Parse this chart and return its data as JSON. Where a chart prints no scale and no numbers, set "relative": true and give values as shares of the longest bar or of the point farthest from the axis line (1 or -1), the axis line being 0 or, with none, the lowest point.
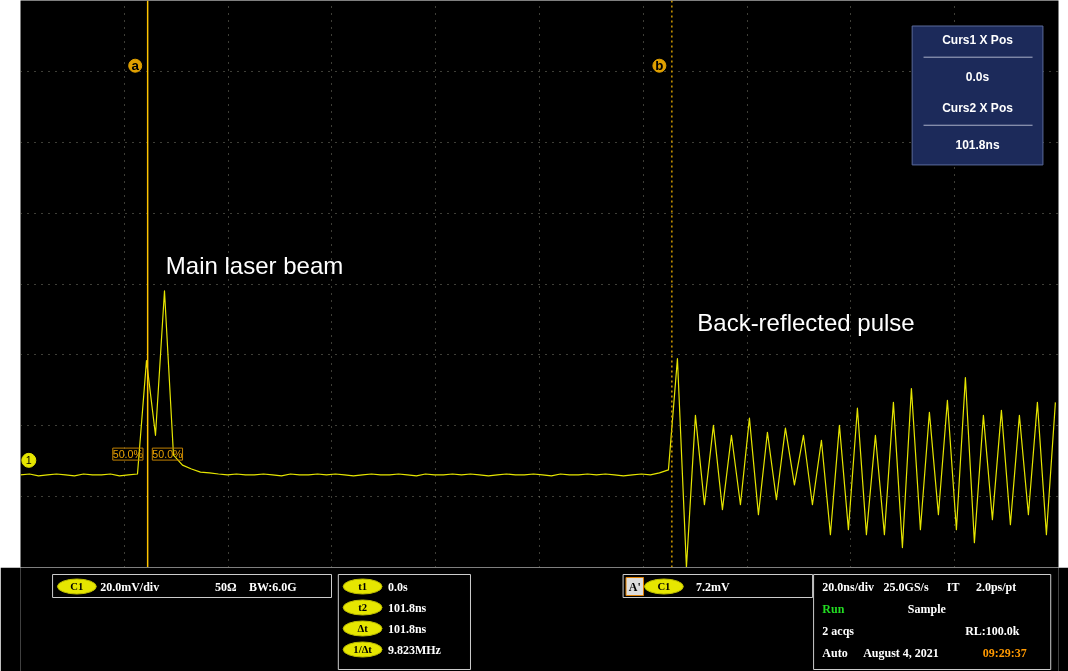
{
  "chart_data": {
    "type": "line",
    "relative": true,
    "grid": true,
    "tick_labels": false,
    "marker": "none",
    "line_style": "solid",
    "categories": [
      null,
      null,
      null,
      null,
      null,
      null,
      null,
      null,
      null,
      null,
      null,
      null,
      null,
      null,
      null,
      null,
      null,
      null,
      null,
      null,
      null,
      null,
      null,
      null,
      null,
      null,
      null,
      null,
      null,
      null,
      null,
      null,
      null,
      null,
      null,
      null,
      null,
      null,
      null,
      null,
      null,
      null,
      null,
      null,
      null,
      null,
      null,
      null,
      null,
      null,
      null,
      null,
      null,
      null,
      null,
      null,
      null,
      null,
      null,
      null,
      null,
      null,
      null,
      null,
      null,
      null,
      null,
      null,
      null,
      null,
      null,
      null,
      null,
      null,
      null,
      null,
      null,
      null,
      null,
      null,
      null,
      null,
      null,
      null,
      null,
      null,
      null,
      null,
      null,
      null,
      null,
      null,
      null,
      null,
      null,
      null,
      null,
      null,
      null,
      null,
      null,
      null,
      null,
      null,
      null,
      null,
      null,
      null,
      null,
      null,
      null,
      null,
      null,
      null,
      null,
      null
    ],
    "series": [
      {
        "color": "#e6e600",
        "values": [
          0.335,
          0.338,
          0.331,
          0.335,
          0.338,
          0.335,
          0.331,
          0.338,
          0.335,
          0.335,
          0.338,
          0.331,
          0.335,
          0.338,
          0.748,
          0.478,
          1.0,
          0.406,
          0.37,
          0.356,
          0.345,
          0.342,
          0.338,
          0.335,
          0.338,
          0.335,
          0.335,
          0.338,
          0.335,
          0.331,
          0.338,
          0.335,
          0.335,
          0.338,
          0.335,
          0.338,
          0.335,
          0.331,
          0.335,
          0.338,
          0.335,
          0.335,
          0.338,
          0.335,
          0.331,
          0.338,
          0.335,
          0.335,
          0.338,
          0.335,
          0.338,
          0.335,
          0.331,
          0.335,
          0.338,
          0.335,
          0.335,
          0.338,
          0.335,
          0.331,
          0.338,
          0.335,
          0.335,
          0.338,
          0.335,
          0.338,
          0.335,
          0.331,
          0.335,
          0.338,
          0.335,
          0.342,
          0.353,
          0.755,
          0.0,
          0.55,
          0.227,
          0.514,
          0.209,
          0.478,
          0.227,
          0.54,
          0.191,
          0.489,
          0.245,
          0.504,
          0.299,
          0.478,
          0.227,
          0.46,
          0.119,
          0.514,
          0.137,
          0.576,
          0.119,
          0.478,
          0.119,
          0.597,
          0.072,
          0.647,
          0.137,
          0.561,
          0.191,
          0.604,
          0.137,
          0.687,
          0.09,
          0.55,
          0.173,
          0.568,
          0.155,
          0.55,
          0.191,
          0.597,
          0.119,
          0.597
        ]
      }
    ],
    "annotations": [
      "Main laser beam",
      "Back-reflected pulse",
      "50.0%",
      "50.0%",
      "1",
      "Curs1 X Pos",
      "0.0s",
      "Curs2 X Pos",
      "101.8ns",
      "C1",
      "20.0mV/div",
      "50Ω",
      "BW:6.0G",
      "t1",
      "0.0s",
      "t2",
      "101.8ns",
      "Δt",
      "101.8ns",
      "1/Δt",
      "9.823MHz",
      "A'",
      "C1",
      "7.2mV",
      "20.0ns/div",
      "25.0GS/s",
      "IT",
      "2.0ps/pt",
      "Run",
      "Sample",
      "2 acqs",
      "RL:100.0k",
      "Auto",
      "August 4, 2021",
      "09:29:37",
      "a",
      "b"
    ]
  }
}
